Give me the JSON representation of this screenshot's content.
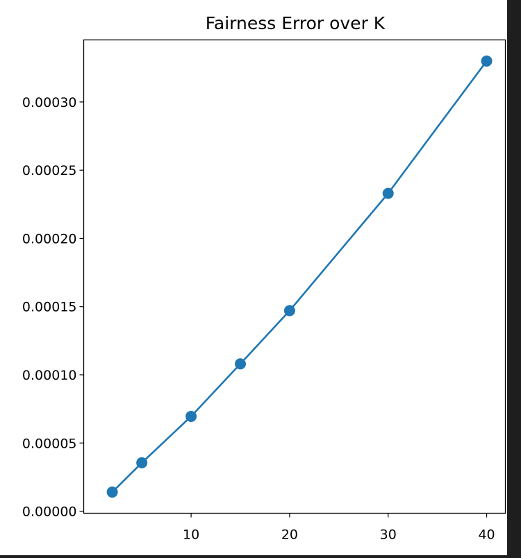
{
  "chart_data": {
    "type": "line",
    "title": "Fairness Error over K",
    "xlabel": "",
    "ylabel": "",
    "x": [
      2,
      5,
      10,
      15,
      20,
      30,
      40
    ],
    "series": [
      {
        "values": [
          1.4e-05,
          3.55e-05,
          6.95e-05,
          0.000108,
          0.000147,
          0.000233,
          0.00033
        ]
      }
    ],
    "xlim": [
      -0.9,
      41.9
    ],
    "ylim": [
      -1.5e-06,
      0.0003455
    ],
    "xticks": [
      10,
      20,
      30,
      40
    ],
    "xtick_labels": [
      "10",
      "20",
      "30",
      "40"
    ],
    "yticks": [
      0,
      5e-05,
      0.0001,
      0.00015,
      0.0002,
      0.00025,
      0.0003
    ],
    "ytick_labels": [
      "0.00000",
      "0.00005",
      "0.00010",
      "0.00015",
      "0.00020",
      "0.00025",
      "0.00030"
    ],
    "grid": false,
    "colors": {
      "line": "#1f77b4",
      "marker": "#1f77b4",
      "axes": "#000000"
    }
  }
}
